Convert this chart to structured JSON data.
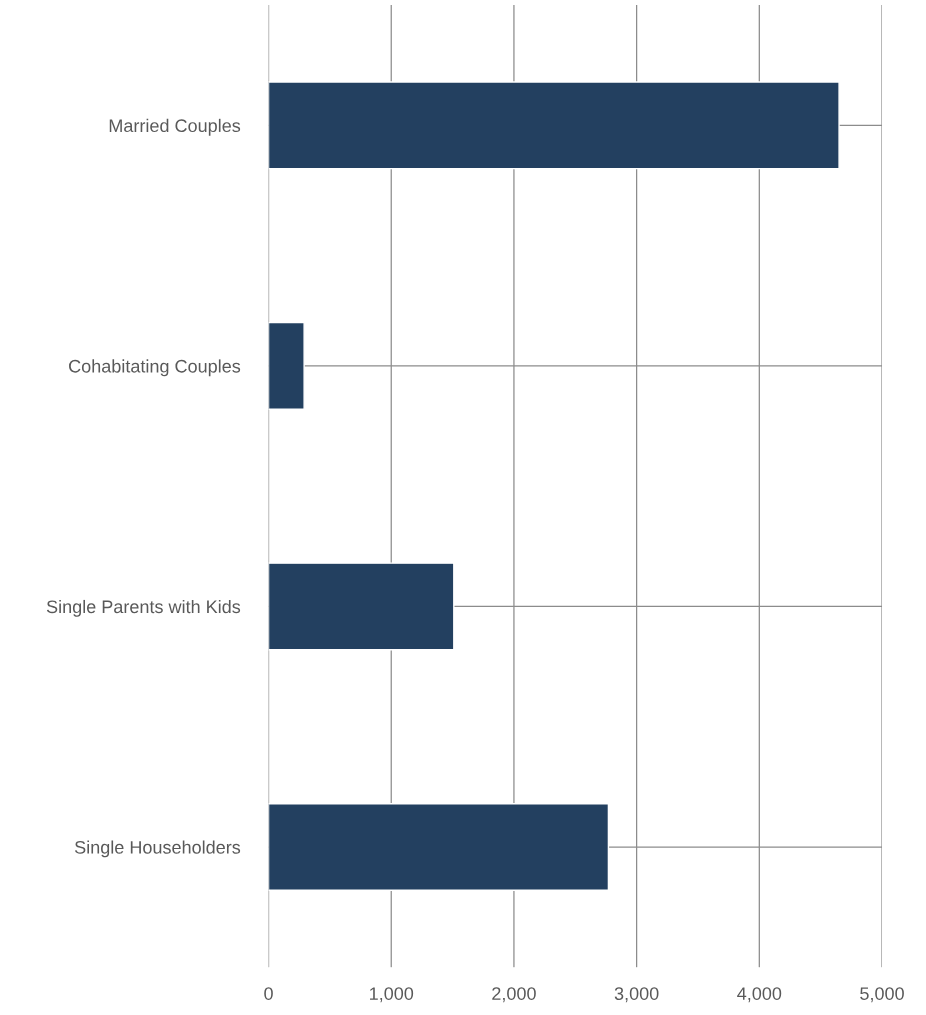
{
  "chart_data": {
    "type": "bar",
    "orientation": "horizontal",
    "categories": [
      "Married Couples",
      "Cohabitating Couples",
      "Single Parents with Kids",
      "Single Householders"
    ],
    "values": [
      4650,
      290,
      1510,
      2770
    ],
    "color": "#234060",
    "xlim": [
      0,
      5000
    ],
    "xticks": [
      {
        "value": 0,
        "label": "0"
      },
      {
        "value": 1000,
        "label": "1,000"
      },
      {
        "value": 2000,
        "label": "2,000"
      },
      {
        "value": 3000,
        "label": "3,000"
      },
      {
        "value": 4000,
        "label": "4,000"
      },
      {
        "value": 5000,
        "label": "5,000"
      }
    ],
    "grid": true
  }
}
